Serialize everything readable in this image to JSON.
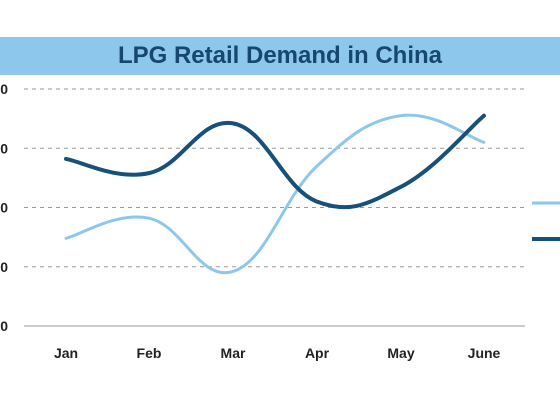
{
  "chart_data": {
    "type": "line",
    "title": "LPG Retail Demand in China",
    "categories": [
      "Jan",
      "Feb",
      "Mar",
      "Apr",
      "May",
      "June"
    ],
    "ytick_labels": [
      "0",
      "0",
      "0",
      "0",
      "0"
    ],
    "ylim": [
      0,
      4
    ],
    "grid": true,
    "legend": "right",
    "series": [
      {
        "color": "#8ec7ec",
        "values": [
          1.48,
          1.82,
          0.92,
          2.7,
          3.55,
          3.1
        ]
      },
      {
        "color": "#17507a",
        "values": [
          2.82,
          2.58,
          3.42,
          2.1,
          2.35,
          3.55
        ]
      }
    ]
  }
}
